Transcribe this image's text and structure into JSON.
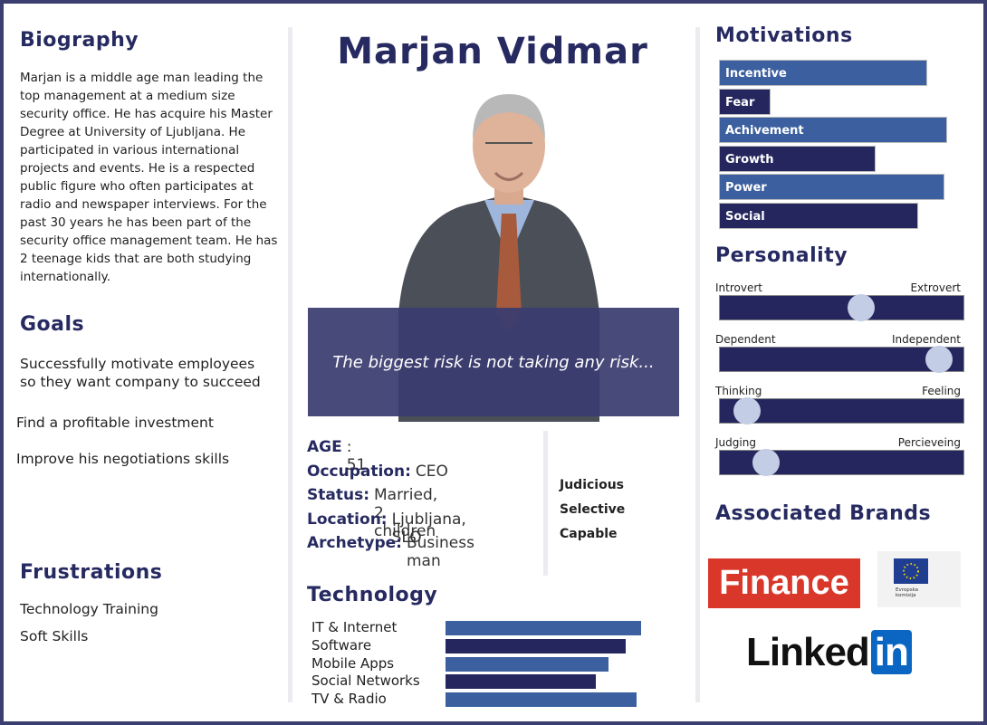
{
  "name": "Marjan Vidmar",
  "biography": {
    "title": "Biography",
    "text": "Marjan is a middle age man leading the top management at a medium size security office. He has acquire his Master Degree at University of Ljubljana. He participated in various international projects and events. He is a respected public figure who often participates at radio and newspaper interviews. For the past 30 years he has been part of the security office management team. He has 2 teenage kids that are both studying internationally."
  },
  "goals": {
    "title": "Goals",
    "items": [
      "Successfully motivate employees so they want company to succeed",
      "Find a profitable investment",
      "Improve his negotiations skills"
    ]
  },
  "frustrations": {
    "title": "Frustrations",
    "items": [
      "Technology Training",
      "Soft Skills"
    ]
  },
  "quote": "The biggest risk is not taking any risk...",
  "details": [
    {
      "label": "AGE",
      "value": ": 51"
    },
    {
      "label": "Occupation:",
      "value": "CEO"
    },
    {
      "label": "Status:",
      "value": "Married, 2 children"
    },
    {
      "label": "Location:",
      "value": "Ljubljana, SLO"
    },
    {
      "label": "Archetype:",
      "value": "Business man"
    }
  ],
  "traits": [
    "Judicious",
    "Selective",
    "Capable"
  ],
  "technology": {
    "title": "Technology",
    "items": [
      {
        "name": "IT & Internet",
        "value": 90
      },
      {
        "name": "Software",
        "value": 83
      },
      {
        "name": "Mobile Apps",
        "value": 75
      },
      {
        "name": "Social Networks",
        "value": 69
      },
      {
        "name": "TV & Radio",
        "value": 88
      }
    ]
  },
  "motivations": {
    "title": "Motivations",
    "items": [
      {
        "name": "Incentive",
        "value": 85
      },
      {
        "name": "Fear",
        "value": 21
      },
      {
        "name": "Achivement",
        "value": 93
      },
      {
        "name": "Growth",
        "value": 64
      },
      {
        "name": "Power",
        "value": 92
      },
      {
        "name": "Social",
        "value": 81
      }
    ]
  },
  "personality": {
    "title": "Personality",
    "items": [
      {
        "left": "Introvert",
        "right": "Extrovert",
        "value": 58
      },
      {
        "left": "Dependent",
        "right": "Independent",
        "value": 90
      },
      {
        "left": "Thinking",
        "right": "Feeling",
        "value": 11
      },
      {
        "left": "Judging",
        "right": "Percieveing",
        "value": 19
      }
    ]
  },
  "brands": {
    "title": "Associated Brands",
    "logos": [
      "Finance",
      "Evropska komisija",
      "Linked",
      "in"
    ]
  }
}
